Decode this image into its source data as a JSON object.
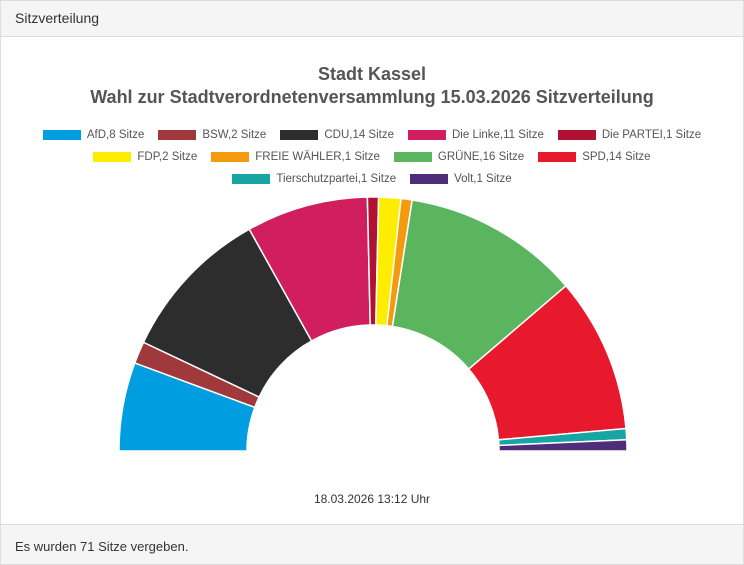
{
  "panel": {
    "header": "Sitzverteilung",
    "footer": "Es wurden 71 Sitze vergeben."
  },
  "chart_data": {
    "type": "pie",
    "title": "Stadt Kassel",
    "subtitle": "Wahl zur Stadtverordnetenversammlung 15.03.2026 Sitzverteilung",
    "timestamp": "18.03.2026 13:12 Uhr",
    "legend_placement": "top",
    "categories": [
      "AfD",
      "BSW",
      "CDU",
      "Die Linke",
      "Die PARTEI",
      "FDP",
      "FREIE WÄHLER",
      "GRÜNE",
      "SPD",
      "Tierschutzpartei",
      "Volt"
    ],
    "values": [
      8,
      2,
      14,
      11,
      1,
      2,
      1,
      16,
      14,
      1,
      1
    ],
    "legend_labels": [
      "AfD,8 Sitze",
      "BSW,2 Sitze",
      "CDU,14 Sitze",
      "Die Linke,11 Sitze",
      "Die PARTEI,1 Sitze",
      "FDP,2 Sitze",
      "FREIE WÄHLER,1 Sitze",
      "GRÜNE,16 Sitze",
      "SPD,14 Sitze",
      "Tierschutzpartei,1 Sitze",
      "Volt,1 Sitze"
    ],
    "colors": [
      "#009ee0",
      "#a0393b",
      "#2d2d2d",
      "#d11e5c",
      "#b11133",
      "#ffed00",
      "#f49a0e",
      "#5bb55f",
      "#e8192c",
      "#16a5a2",
      "#4e2d7a"
    ]
  }
}
